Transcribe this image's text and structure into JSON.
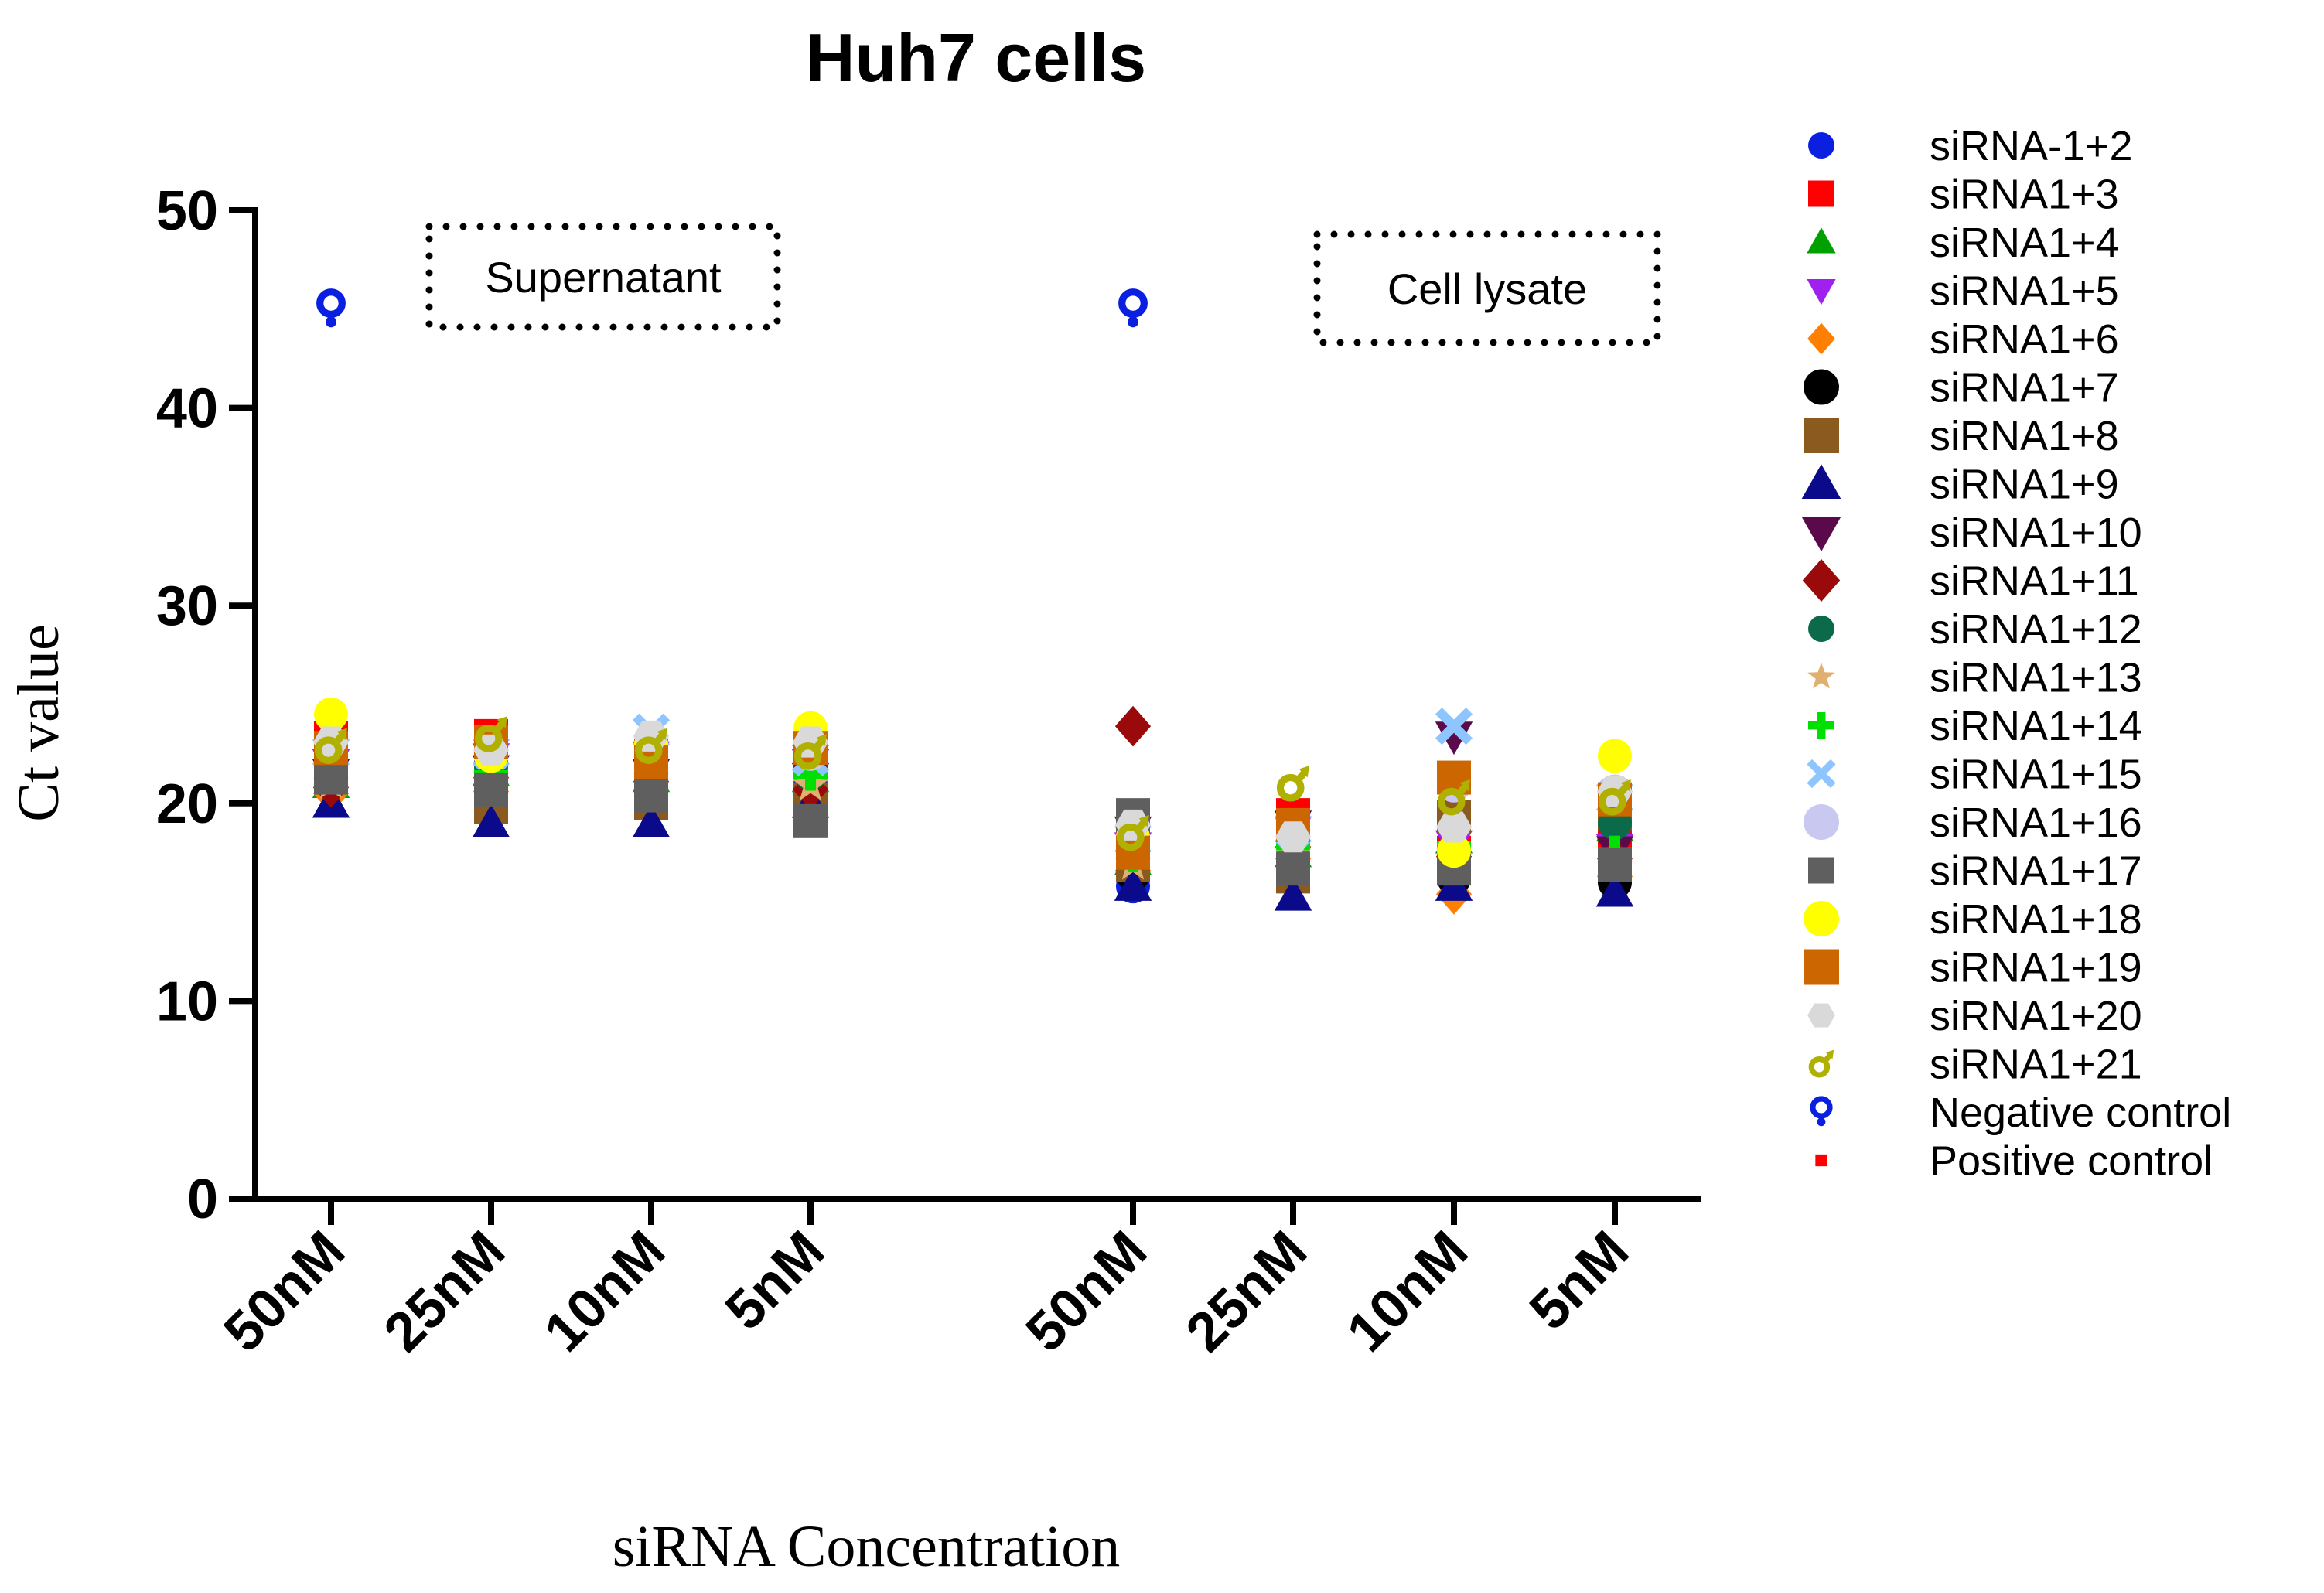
{
  "chart_data": {
    "type": "scatter",
    "title": "Huh7 cells",
    "xlabel": "siRNA Concentration",
    "ylabel": "Ct value",
    "ylim": [
      0,
      50
    ],
    "yticks": [
      0,
      10,
      20,
      30,
      40,
      50
    ],
    "categories": [
      "50nM",
      "25nM",
      "10nM",
      "5nM",
      "50nM",
      "25nM",
      "10nM",
      "5nM"
    ],
    "groups": [
      {
        "label": "Supernatant",
        "category_indices": [
          0,
          1,
          2,
          3
        ]
      },
      {
        "label": "Cell lysate",
        "category_indices": [
          4,
          5,
          6,
          7
        ]
      }
    ],
    "legend_position": "right",
    "series": [
      {
        "name": "siRNA-1+2",
        "marker": "circle",
        "color": "#0a1fe0",
        "values": [
          20.8,
          22.0,
          21.0,
          21.0,
          15.8,
          18.0,
          16.2,
          16.5
        ]
      },
      {
        "name": "siRNA1+3",
        "marker": "square",
        "color": "#ff0000",
        "values": [
          23.3,
          23.4,
          22.4,
          22.6,
          17.9,
          19.4,
          17.5,
          18.2
        ]
      },
      {
        "name": "siRNA1+4",
        "marker": "triangle-up",
        "color": "#00a000",
        "values": [
          21.0,
          21.6,
          21.3,
          21.3,
          17.1,
          17.5,
          18.2,
          18.8
        ]
      },
      {
        "name": "siRNA1+5",
        "marker": "triangle-down",
        "color": "#a020f0",
        "values": [
          22.0,
          22.3,
          22.4,
          22.0,
          17.8,
          18.6,
          17.9,
          17.7
        ]
      },
      {
        "name": "siRNA1+6",
        "marker": "diamond",
        "color": "#ff7f00",
        "values": [
          20.5,
          20.6,
          20.7,
          19.7,
          16.6,
          17.2,
          15.4,
          16.3
        ]
      },
      {
        "name": "siRNA1+7",
        "marker": "circle",
        "color": "#000000",
        "values": [
          21.2,
          20.8,
          20.5,
          20.6,
          16.4,
          17.1,
          16.2,
          16.0
        ]
      },
      {
        "name": "siRNA1+8",
        "marker": "square",
        "color": "#8b5a1f",
        "values": [
          21.8,
          19.8,
          20.0,
          20.2,
          16.9,
          16.3,
          19.3,
          19.5
        ]
      },
      {
        "name": "siRNA1+9",
        "marker": "triangle-up",
        "color": "#0a0a8a",
        "values": [
          20.0,
          19.0,
          19.0,
          20.0,
          15.8,
          15.3,
          15.8,
          15.5
        ]
      },
      {
        "name": "siRNA1+10",
        "marker": "triangle-down",
        "color": "#5a0a4a",
        "values": [
          21.5,
          21.7,
          21.5,
          21.3,
          18.6,
          18.9,
          23.4,
          17.6
        ]
      },
      {
        "name": "siRNA1+11",
        "marker": "diamond",
        "color": "#9b0a0a",
        "values": [
          20.8,
          21.3,
          21.1,
          20.7,
          23.9,
          17.8,
          17.3,
          17.2
        ]
      },
      {
        "name": "siRNA1+12",
        "marker": "circle",
        "color": "#0a6a4a",
        "values": [
          21.5,
          21.8,
          21.5,
          21.5,
          17.5,
          18.1,
          17.6,
          19.0
        ]
      },
      {
        "name": "siRNA1+13",
        "marker": "star",
        "color": "#e0b070",
        "values": [
          21.0,
          21.3,
          21.2,
          20.9,
          16.9,
          17.4,
          17.1,
          16.9
        ]
      },
      {
        "name": "siRNA1+14",
        "marker": "plus",
        "color": "#00e000",
        "values": [
          21.6,
          21.4,
          21.3,
          21.5,
          17.4,
          17.9,
          17.8,
          17.5
        ]
      },
      {
        "name": "siRNA1+15",
        "marker": "cross",
        "color": "#8ec5ff",
        "values": [
          22.6,
          22.6,
          23.6,
          22.3,
          18.2,
          18.7,
          23.9,
          20.3
        ]
      },
      {
        "name": "siRNA1+16",
        "marker": "circle",
        "color": "#c8c8f0",
        "values": [
          22.5,
          22.8,
          23.0,
          22.5,
          19.0,
          18.5,
          20.9,
          20.6
        ]
      },
      {
        "name": "siRNA1+17",
        "marker": "square",
        "color": "#5f5f5f",
        "values": [
          21.3,
          20.7,
          20.4,
          19.1,
          19.4,
          16.7,
          16.7,
          16.9
        ]
      },
      {
        "name": "siRNA1+18",
        "marker": "circle",
        "color": "#ffff00",
        "values": [
          24.5,
          22.4,
          23.0,
          23.8,
          18.3,
          18.7,
          17.6,
          22.4
        ]
      },
      {
        "name": "siRNA1+19",
        "marker": "square",
        "color": "#cc6600",
        "values": [
          22.8,
          23.1,
          22.1,
          22.8,
          17.5,
          18.9,
          21.3,
          20.2
        ]
      },
      {
        "name": "siRNA1+20",
        "marker": "hexagon",
        "color": "#d9d9d9",
        "values": [
          23.1,
          22.7,
          23.4,
          23.1,
          18.9,
          18.3,
          18.8,
          20.6
        ]
      },
      {
        "name": "siRNA1+21",
        "marker": "male-symbol",
        "color": "#b0b000",
        "values": [
          22.9,
          23.5,
          22.9,
          22.6,
          18.5,
          21.0,
          20.3,
          20.3
        ]
      },
      {
        "name": "Negative control",
        "marker": "female-symbol",
        "color": "#0a1fe0",
        "values": [
          45.0,
          null,
          null,
          null,
          45.0,
          null,
          null,
          null
        ]
      },
      {
        "name": "Positive control",
        "marker": "small-square",
        "color": "#ff0000",
        "values": [
          null,
          null,
          null,
          null,
          null,
          null,
          null,
          null
        ]
      }
    ]
  }
}
